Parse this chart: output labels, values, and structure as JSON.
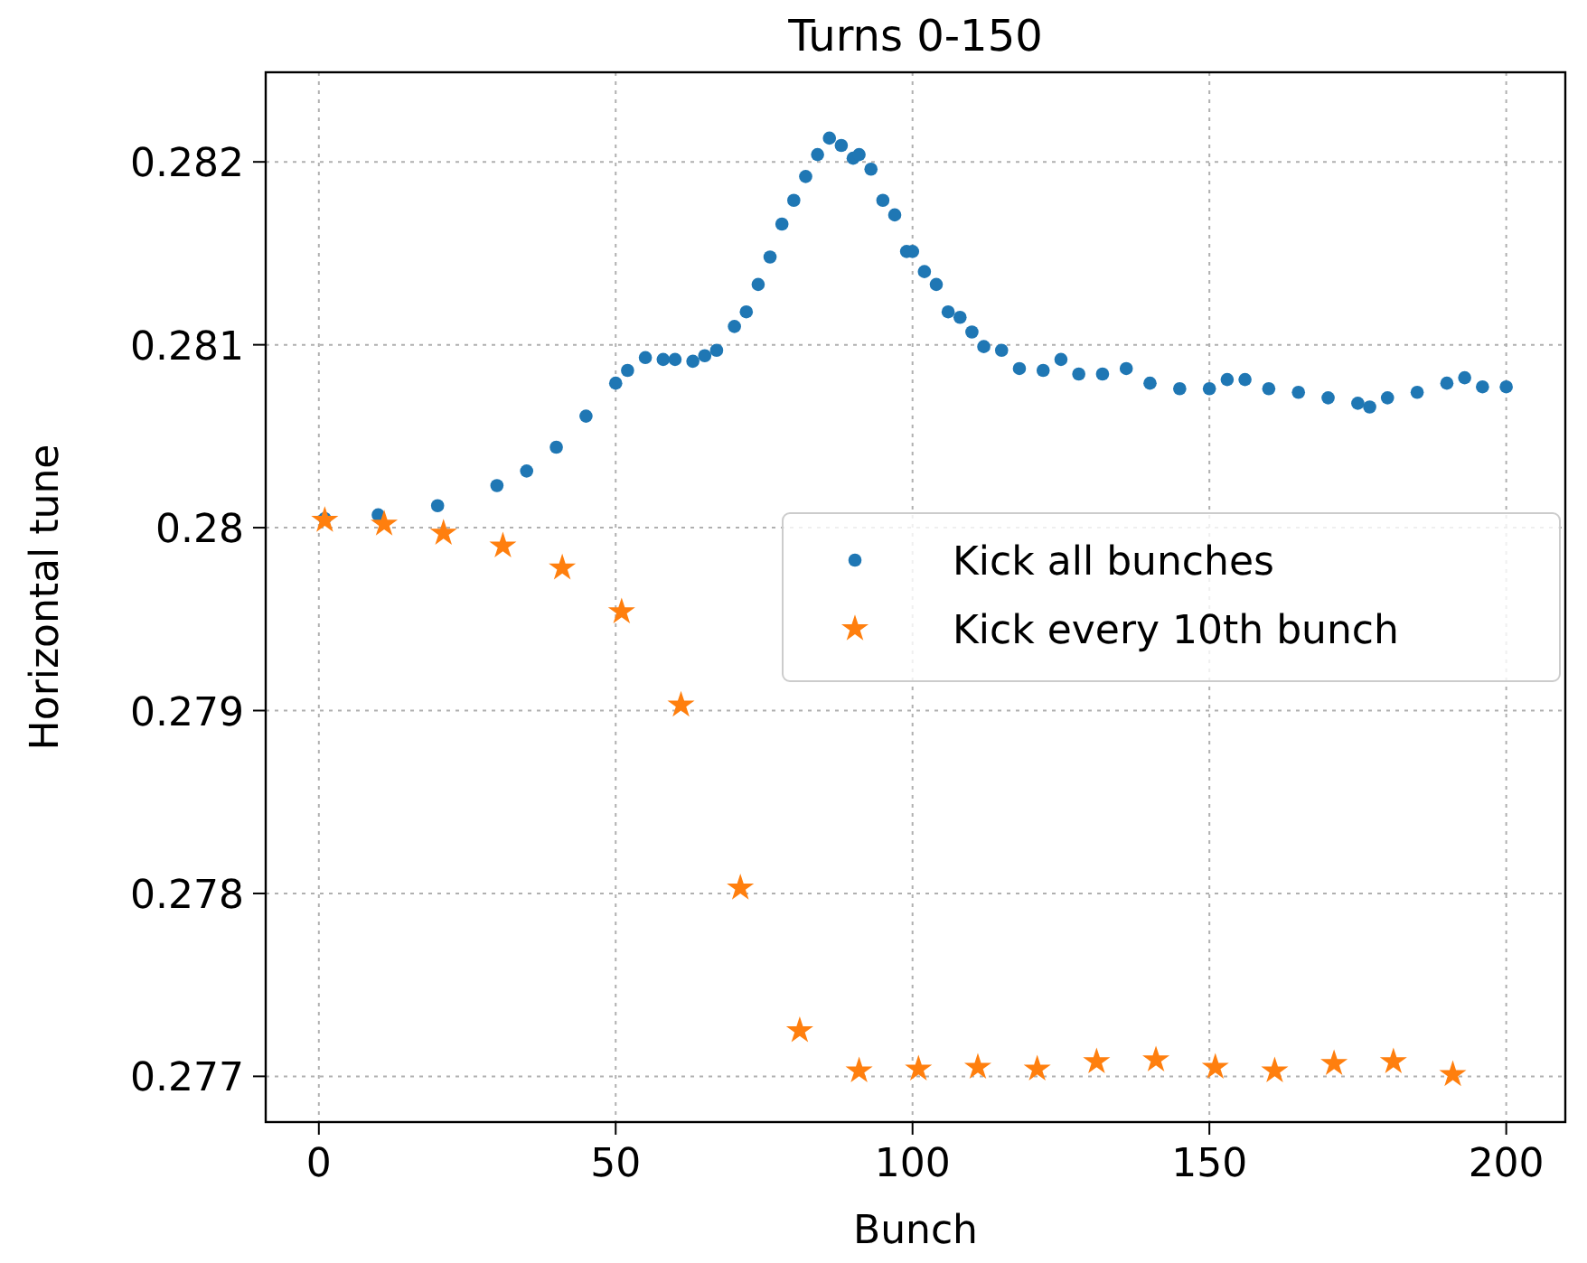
{
  "chart_data": {
    "type": "scatter",
    "title": "Turns 0-150",
    "xlabel": "Bunch",
    "ylabel": "Horizontal tune",
    "xlim": [
      -8.95,
      209.95
    ],
    "xticks": [
      0,
      50,
      100,
      150,
      200
    ],
    "ylim": [
      0.27675,
      0.28249
    ],
    "yticks": [
      0.277,
      0.278,
      0.279,
      0.28,
      0.281,
      0.282
    ],
    "grid": true,
    "legend": "center right",
    "series": [
      {
        "name": "Kick all bunches",
        "color": "#1f77b4",
        "marker": "circle",
        "x": [
          1,
          10,
          20,
          30,
          35,
          40,
          45,
          50,
          52,
          55,
          58,
          60,
          63,
          65,
          67,
          70,
          72,
          74,
          76,
          78,
          80,
          82,
          84,
          86,
          88,
          90,
          91,
          93,
          95,
          97,
          99,
          100,
          102,
          104,
          106,
          108,
          110,
          112,
          115,
          118,
          122,
          125,
          128,
          132,
          136,
          140,
          145,
          150,
          153,
          156,
          160,
          165,
          170,
          175,
          177,
          180,
          185,
          190,
          193,
          196,
          200
        ],
        "values": [
          0.28005,
          0.28007,
          0.28012,
          0.28023,
          0.28031,
          0.28044,
          0.28061,
          0.28079,
          0.28086,
          0.28093,
          0.28092,
          0.28092,
          0.28091,
          0.28094,
          0.28097,
          0.2811,
          0.28118,
          0.28133,
          0.28148,
          0.28166,
          0.28179,
          0.28192,
          0.28204,
          0.28213,
          0.28209,
          0.28202,
          0.28204,
          0.28196,
          0.28179,
          0.28171,
          0.28151,
          0.28151,
          0.2814,
          0.28133,
          0.28118,
          0.28115,
          0.28107,
          0.28099,
          0.28097,
          0.28087,
          0.28086,
          0.28092,
          0.28084,
          0.28084,
          0.28087,
          0.28079,
          0.28076,
          0.28076,
          0.28081,
          0.28081,
          0.28076,
          0.28074,
          0.28071,
          0.28068,
          0.28066,
          0.28071,
          0.28074,
          0.28079,
          0.28082,
          0.28077,
          0.28077
        ]
      },
      {
        "name": "Kick every 10th bunch",
        "color": "#ff7f0e",
        "marker": "star",
        "x": [
          1,
          11,
          21,
          31,
          41,
          51,
          61,
          71,
          81,
          91,
          101,
          111,
          121,
          131,
          141,
          151,
          161,
          171,
          181,
          191
        ],
        "values": [
          0.28004,
          0.28002,
          0.27997,
          0.2799,
          0.27978,
          0.27954,
          0.27903,
          0.27803,
          0.27725,
          0.27703,
          0.27704,
          0.27705,
          0.27704,
          0.27708,
          0.27709,
          0.27705,
          0.27703,
          0.27707,
          0.27708,
          0.27701
        ]
      }
    ]
  }
}
